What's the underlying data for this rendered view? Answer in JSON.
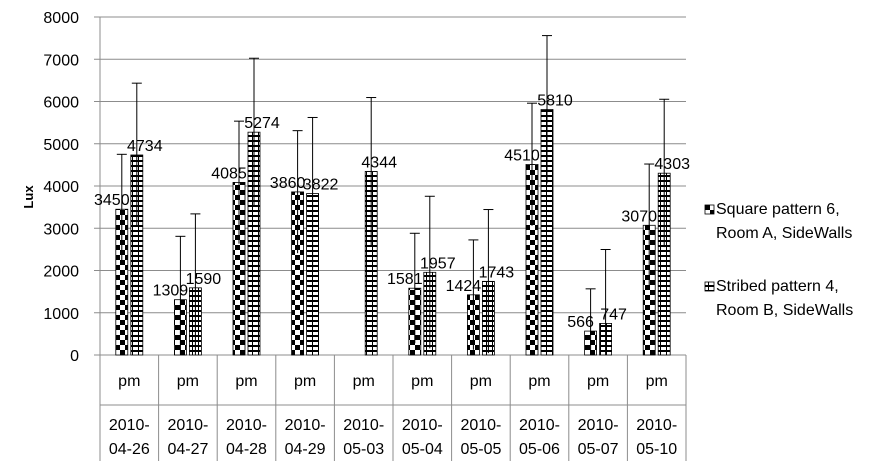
{
  "chart_data": {
    "type": "bar",
    "title": "",
    "xlabel": "",
    "ylabel": "Lux",
    "ylim": [
      0,
      8000
    ],
    "yticks": [
      0,
      1000,
      2000,
      3000,
      4000,
      5000,
      6000,
      7000,
      8000
    ],
    "grid": true,
    "legend_position": "right",
    "categories": [
      {
        "time": "pm",
        "date_line1": "2010-",
        "date_line2": "04-26"
      },
      {
        "time": "pm",
        "date_line1": "2010-",
        "date_line2": "04-27"
      },
      {
        "time": "pm",
        "date_line1": "2010-",
        "date_line2": "04-28"
      },
      {
        "time": "pm",
        "date_line1": "2010-",
        "date_line2": "04-29"
      },
      {
        "time": "pm",
        "date_line1": "2010-",
        "date_line2": "05-03"
      },
      {
        "time": "pm",
        "date_line1": "2010-",
        "date_line2": "05-04"
      },
      {
        "time": "pm",
        "date_line1": "2010-",
        "date_line2": "05-05"
      },
      {
        "time": "pm",
        "date_line1": "2010-",
        "date_line2": "05-06"
      },
      {
        "time": "pm",
        "date_line1": "2010-",
        "date_line2": "05-07"
      },
      {
        "time": "pm",
        "date_line1": "2010-",
        "date_line2": "05-10"
      }
    ],
    "series": [
      {
        "name_line1": "Square pattern 6,",
        "name_line2": "Room A,  SideWalls",
        "pattern": "checker",
        "values": [
          3450,
          1309,
          4085,
          3860,
          null,
          1581,
          1424,
          4510,
          566,
          3070
        ],
        "labels": [
          "3450",
          "1309",
          "4085",
          "3860",
          "",
          "1581",
          "1424",
          "4510",
          "566",
          "3070"
        ],
        "err_plus": [
          1300,
          1500,
          1450,
          1450,
          null,
          1300,
          1300,
          1450,
          1000,
          1450
        ],
        "err_minus": [
          1300,
          1500,
          1450,
          1450,
          null,
          1300,
          1300,
          1450,
          1000,
          1450
        ]
      },
      {
        "name_line1": "Stribed pattern 4,",
        "name_line2": "Room B,  SideWalls",
        "pattern": "stripes",
        "values": [
          4734,
          1590,
          5274,
          3822,
          4344,
          1957,
          1743,
          5810,
          747,
          4303
        ],
        "labels": [
          "4734",
          "1590",
          "5274",
          "3822",
          "4344",
          "1957",
          "1743",
          "5810",
          "747",
          "4303"
        ],
        "err_plus": [
          1700,
          1750,
          1750,
          1800,
          1750,
          1800,
          1700,
          1750,
          1750,
          1750
        ],
        "err_minus": [
          1700,
          1750,
          1750,
          1800,
          1750,
          1800,
          1700,
          1750,
          1750,
          1750
        ]
      }
    ]
  }
}
